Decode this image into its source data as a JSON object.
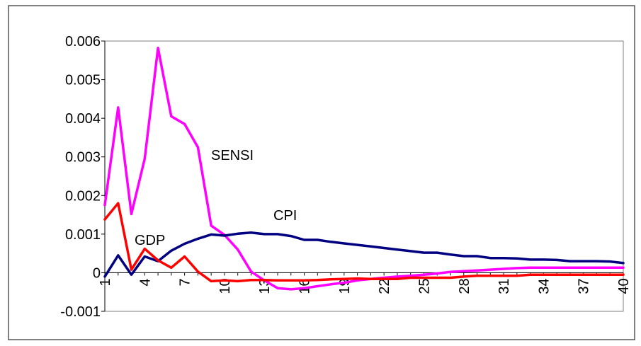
{
  "chart_data": {
    "type": "line",
    "title": "",
    "xlabel": "",
    "ylabel": "",
    "x": [
      1,
      2,
      3,
      4,
      5,
      6,
      7,
      8,
      9,
      10,
      11,
      12,
      13,
      14,
      15,
      16,
      17,
      18,
      19,
      20,
      21,
      22,
      23,
      24,
      25,
      26,
      27,
      28,
      29,
      30,
      31,
      32,
      33,
      34,
      35,
      36,
      37,
      38,
      39,
      40
    ],
    "x_tick_labels": [
      "1",
      "4",
      "7",
      "10",
      "13",
      "16",
      "19",
      "22",
      "25",
      "28",
      "31",
      "34",
      "37",
      "40"
    ],
    "y_tick_labels": [
      "0.006",
      "0.005",
      "0.004",
      "0.003",
      "0.002",
      "0.001",
      "0",
      "-0.001"
    ],
    "y_ticks": [
      0.006,
      0.005,
      0.004,
      0.003,
      0.002,
      0.001,
      0,
      -0.001
    ],
    "ylim": [
      -0.001,
      0.006
    ],
    "grid": false,
    "legend": "none",
    "series": [
      {
        "name": "SENSI",
        "color": "#ff00ff",
        "values": [
          0.00175,
          0.00428,
          0.00152,
          0.00295,
          0.00582,
          0.00405,
          0.00385,
          0.00325,
          0.00122,
          0.00098,
          0.0006,
          3e-05,
          -0.0002,
          -0.0004,
          -0.00043,
          -0.0004,
          -0.00035,
          -0.0003,
          -0.00026,
          -0.0002,
          -0.00016,
          -0.00013,
          -0.0001,
          -8e-05,
          -5e-05,
          -2e-05,
          2e-05,
          4e-05,
          6e-05,
          8e-05,
          0.0001,
          0.00012,
          0.00013,
          0.00013,
          0.00013,
          0.00013,
          0.00013,
          0.00013,
          0.00013,
          0.00013
        ]
      },
      {
        "name": "CPI",
        "color": "#000080",
        "values": [
          -0.0001,
          0.00045,
          -5e-05,
          0.00042,
          0.0003,
          0.00057,
          0.00075,
          0.00088,
          0.00099,
          0.00096,
          0.00101,
          0.00104,
          0.001,
          0.001,
          0.00095,
          0.00085,
          0.00085,
          0.0008,
          0.00076,
          0.00072,
          0.00068,
          0.00064,
          0.0006,
          0.00056,
          0.00052,
          0.00052,
          0.00047,
          0.00043,
          0.00043,
          0.00038,
          0.00038,
          0.00037,
          0.00034,
          0.00034,
          0.00033,
          0.0003,
          0.0003,
          0.0003,
          0.00029,
          0.00025
        ]
      },
      {
        "name": "GDP",
        "color": "#ff0000",
        "values": [
          0.00138,
          0.0018,
          8e-05,
          0.00062,
          0.00032,
          0.00013,
          0.00042,
          3e-05,
          -0.00022,
          -0.0002,
          -0.00022,
          -0.00019,
          -0.00019,
          -0.0002,
          -0.0002,
          -0.0002,
          -0.00019,
          -0.00017,
          -0.00016,
          -0.00015,
          -0.00016,
          -0.00016,
          -0.00016,
          -0.00013,
          -0.00013,
          -0.00013,
          -0.00013,
          -0.0001,
          -8e-05,
          -8e-05,
          -8e-05,
          -8e-05,
          -5e-05,
          -5e-05,
          -5e-05,
          -5e-05,
          -5e-05,
          -5e-05,
          -5e-05,
          -5e-05
        ]
      }
    ],
    "annotations": [
      {
        "text": "SENSI",
        "series": "SENSI"
      },
      {
        "text": "CPI",
        "series": "CPI"
      },
      {
        "text": "GDP",
        "series": "GDP"
      }
    ]
  }
}
